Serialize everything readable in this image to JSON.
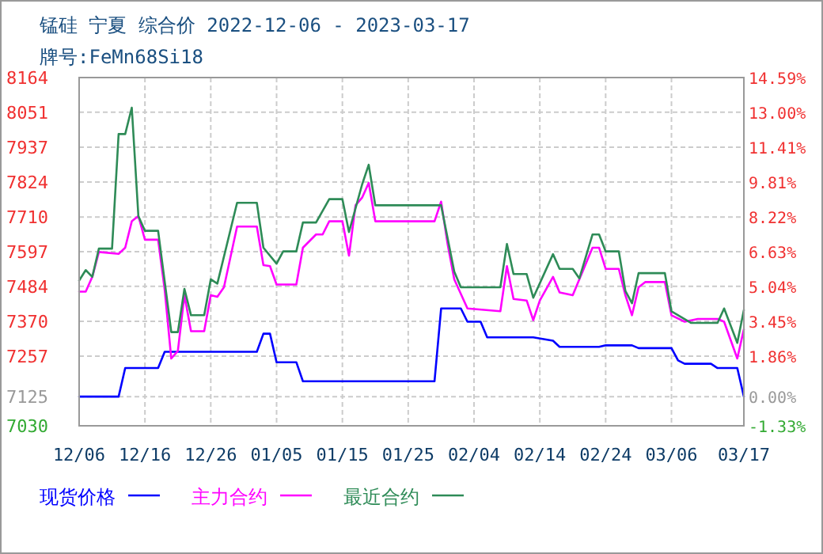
{
  "chart_data": {
    "type": "line",
    "title": "锰硅 宁夏 综合价 2022-12-06 - 2023-03-17",
    "subtitle": "牌号:FeMn68Si18",
    "xlim": [
      "2022-12-06",
      "2023-03-17"
    ],
    "xticks": [
      {
        "value": "2022-12-06",
        "label": "12/06"
      },
      {
        "value": "2022-12-16",
        "label": "12/16"
      },
      {
        "value": "2022-12-26",
        "label": "12/26"
      },
      {
        "value": "2023-01-05",
        "label": "01/05"
      },
      {
        "value": "2023-01-15",
        "label": "01/15"
      },
      {
        "value": "2023-01-25",
        "label": "01/25"
      },
      {
        "value": "2023-02-04",
        "label": "02/04"
      },
      {
        "value": "2023-02-14",
        "label": "02/14"
      },
      {
        "value": "2023-02-24",
        "label": "02/24"
      },
      {
        "value": "2023-03-06",
        "label": "03/06"
      },
      {
        "value": "2023-03-17",
        "label": "03/17"
      }
    ],
    "ylim": [
      7030,
      8164
    ],
    "yticks": [
      8164,
      8051,
      7937,
      7824,
      7710,
      7597,
      7484,
      7370,
      7257,
      7125,
      7030
    ],
    "y2lim": [
      -1.33,
      14.59
    ],
    "y2ticks": [
      {
        "value": 14.59,
        "label": "14.59%"
      },
      {
        "value": 13,
        "label": "13.00%"
      },
      {
        "value": 11.41,
        "label": "11.41%"
      },
      {
        "value": 9.81,
        "label": "9.81%"
      },
      {
        "value": 8.22,
        "label": "8.22%"
      },
      {
        "value": 6.63,
        "label": "6.63%"
      },
      {
        "value": 5.04,
        "label": "5.04%"
      },
      {
        "value": 3.45,
        "label": "3.45%"
      },
      {
        "value": 1.86,
        "label": "1.86%"
      },
      {
        "value": 0,
        "label": "0.00%"
      },
      {
        "value": -1.33,
        "label": "-1.33%"
      }
    ],
    "grid": true,
    "legend": "bottom",
    "line_style": "solid",
    "series": [
      {
        "name": "现货价格",
        "color": "#0000ff",
        "x": [
          "2022-12-06",
          "2022-12-12",
          "2022-12-13",
          "2022-12-18",
          "2022-12-19",
          "2023-01-02",
          "2023-01-03",
          "2023-01-04",
          "2023-01-05",
          "2023-01-08",
          "2023-01-09",
          "2023-01-29",
          "2023-01-30",
          "2023-02-02",
          "2023-02-03",
          "2023-02-05",
          "2023-02-06",
          "2023-02-13",
          "2023-02-16",
          "2023-02-17",
          "2023-02-23",
          "2023-02-24",
          "2023-02-28",
          "2023-03-01",
          "2023-03-06",
          "2023-03-07",
          "2023-03-08",
          "2023-03-12",
          "2023-03-13",
          "2023-03-16",
          "2023-03-17"
        ],
        "values": [
          7125,
          7125,
          7218,
          7218,
          7271,
          7271,
          7330,
          7330,
          7237,
          7237,
          7175,
          7175,
          7412,
          7412,
          7369,
          7369,
          7318,
          7318,
          7307,
          7287,
          7287,
          7292,
          7292,
          7283,
          7283,
          7243,
          7232,
          7232,
          7218,
          7218,
          7125
        ]
      },
      {
        "name": "主力合约",
        "color": "#ff00ff",
        "x": [
          "2022-12-06",
          "2022-12-07",
          "2022-12-08",
          "2022-12-09",
          "2022-12-12",
          "2022-12-13",
          "2022-12-14",
          "2022-12-15",
          "2022-12-16",
          "2022-12-18",
          "2022-12-19",
          "2022-12-20",
          "2022-12-21",
          "2022-12-22",
          "2022-12-23",
          "2022-12-25",
          "2022-12-26",
          "2022-12-27",
          "2022-12-28",
          "2022-12-30",
          "2023-01-02",
          "2023-01-03",
          "2023-01-04",
          "2023-01-05",
          "2023-01-08",
          "2023-01-09",
          "2023-01-11",
          "2023-01-12",
          "2023-01-13",
          "2023-01-15",
          "2023-01-16",
          "2023-01-17",
          "2023-01-18",
          "2023-01-19",
          "2023-01-20",
          "2023-01-29",
          "2023-01-30",
          "2023-01-31",
          "2023-02-01",
          "2023-02-03",
          "2023-02-08",
          "2023-02-09",
          "2023-02-10",
          "2023-02-12",
          "2023-02-13",
          "2023-02-14",
          "2023-02-16",
          "2023-02-17",
          "2023-02-19",
          "2023-02-20",
          "2023-02-22",
          "2023-02-23",
          "2023-02-24",
          "2023-02-26",
          "2023-02-27",
          "2023-02-28",
          "2023-03-01",
          "2023-03-02",
          "2023-03-05",
          "2023-03-06",
          "2023-03-08",
          "2023-03-10",
          "2023-03-13",
          "2023-03-14",
          "2023-03-16",
          "2023-03-17"
        ],
        "values": [
          7467,
          7467,
          7515,
          7596,
          7590,
          7610,
          7696,
          7713,
          7636,
          7636,
          7473,
          7249,
          7274,
          7455,
          7338,
          7338,
          7455,
          7450,
          7481,
          7679,
          7679,
          7553,
          7550,
          7490,
          7490,
          7610,
          7653,
          7653,
          7696,
          7696,
          7584,
          7748,
          7773,
          7821,
          7696,
          7696,
          7760,
          7620,
          7507,
          7412,
          7403,
          7550,
          7443,
          7438,
          7374,
          7438,
          7515,
          7464,
          7455,
          7507,
          7610,
          7610,
          7541,
          7541,
          7455,
          7390,
          7481,
          7498,
          7498,
          7390,
          7369,
          7378,
          7378,
          7369,
          7249,
          7344
        ]
      },
      {
        "name": "最近合约",
        "color": "#2e8b57",
        "x": [
          "2022-12-06",
          "2022-12-07",
          "2022-12-08",
          "2022-12-09",
          "2022-12-11",
          "2022-12-12",
          "2022-12-13",
          "2022-12-14",
          "2022-12-15",
          "2022-12-16",
          "2022-12-18",
          "2022-12-20",
          "2022-12-21",
          "2022-12-22",
          "2022-12-23",
          "2022-12-25",
          "2022-12-26",
          "2022-12-27",
          "2022-12-30",
          "2023-01-02",
          "2023-01-03",
          "2023-01-05",
          "2023-01-06",
          "2023-01-08",
          "2023-01-09",
          "2023-01-11",
          "2023-01-13",
          "2023-01-15",
          "2023-01-16",
          "2023-01-18",
          "2023-01-19",
          "2023-01-20",
          "2023-01-30",
          "2023-02-01",
          "2023-02-02",
          "2023-02-08",
          "2023-02-09",
          "2023-02-10",
          "2023-02-12",
          "2023-02-13",
          "2023-02-16",
          "2023-02-17",
          "2023-02-19",
          "2023-02-20",
          "2023-02-22",
          "2023-02-23",
          "2023-02-24",
          "2023-02-26",
          "2023-02-27",
          "2023-02-28",
          "2023-03-01",
          "2023-03-05",
          "2023-03-06",
          "2023-03-09",
          "2023-03-13",
          "2023-03-14",
          "2023-03-16",
          "2023-03-17"
        ],
        "values": [
          7503,
          7537,
          7515,
          7607,
          7607,
          7980,
          7980,
          8066,
          7713,
          7665,
          7665,
          7335,
          7335,
          7476,
          7390,
          7390,
          7507,
          7493,
          7756,
          7756,
          7610,
          7558,
          7598,
          7598,
          7692,
          7692,
          7768,
          7768,
          7661,
          7816,
          7880,
          7748,
          7748,
          7532,
          7481,
          7481,
          7622,
          7524,
          7524,
          7447,
          7589,
          7541,
          7541,
          7510,
          7653,
          7653,
          7598,
          7598,
          7469,
          7429,
          7527,
          7527,
          7403,
          7365,
          7365,
          7412,
          7300,
          7407
        ]
      }
    ]
  }
}
